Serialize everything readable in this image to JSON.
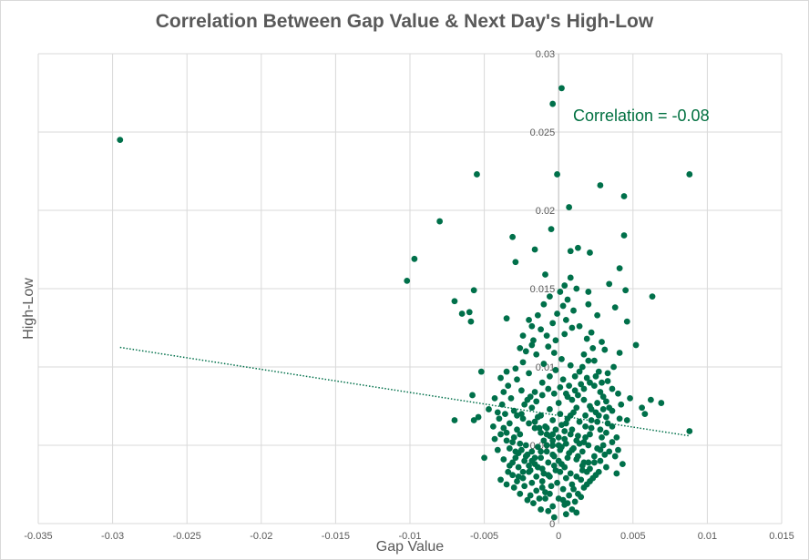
{
  "chart_data": {
    "type": "scatter",
    "title": "Correlation Between Gap Value & Next Day's High-Low",
    "xlabel": "Gap Value",
    "ylabel": "High-Low",
    "xlim": [
      -0.035,
      0.015
    ],
    "ylim": [
      0,
      0.03
    ],
    "x_ticks": [
      "-0.035",
      "-0.03",
      "-0.025",
      "-0.02",
      "-0.015",
      "-0.01",
      "-0.005",
      "0",
      "0.005",
      "0.01",
      "0.015"
    ],
    "x_tick_values": [
      -0.035,
      -0.03,
      -0.025,
      -0.02,
      -0.015,
      -0.01,
      -0.005,
      0,
      0.005,
      0.01,
      0.015
    ],
    "y_ticks": [
      "0",
      "0.005",
      "0.01",
      "0.015",
      "0.02",
      "0.025",
      "0.03"
    ],
    "y_tick_values": [
      0,
      0.005,
      0.01,
      0.015,
      0.02,
      0.025,
      0.03
    ],
    "grid": true,
    "annotation": "Correlation = -0.08",
    "marker_color": "#00704a",
    "trendline": {
      "style": "dotted",
      "x": [
        -0.0295,
        0.0088
      ],
      "y": [
        0.01125,
        0.0056
      ]
    },
    "points": [
      [
        -0.0295,
        0.0245
      ],
      [
        -0.0102,
        0.0155
      ],
      [
        -0.0097,
        0.0169
      ],
      [
        -0.008,
        0.0193
      ],
      [
        -0.0055,
        0.0223
      ],
      [
        -0.0057,
        0.0149
      ],
      [
        -0.007,
        0.0142
      ],
      [
        -0.0065,
        0.0134
      ],
      [
        -0.006,
        0.0135
      ],
      [
        -0.0059,
        0.0129
      ],
      [
        -0.0052,
        0.0097
      ],
      [
        -0.0058,
        0.0082
      ],
      [
        -0.007,
        0.0066
      ],
      [
        -0.0057,
        0.0066
      ],
      [
        -0.0054,
        0.0068
      ],
      [
        -0.005,
        0.0042
      ],
      [
        -0.0035,
        0.0097
      ],
      [
        -0.0026,
        0.0112
      ],
      [
        -0.0018,
        0.0114
      ],
      [
        -0.0018,
        0.0126
      ],
      [
        -0.0035,
        0.0131
      ],
      [
        -0.0029,
        0.0167
      ],
      [
        -0.0031,
        0.0183
      ],
      [
        -0.0016,
        0.0175
      ],
      [
        -0.0009,
        0.0159
      ],
      [
        -0.0005,
        0.0188
      ],
      [
        -0.0004,
        0.0268
      ],
      [
        0.0002,
        0.0278
      ],
      [
        -0.0001,
        0.0223
      ],
      [
        0.0007,
        0.0202
      ],
      [
        0.0028,
        0.0216
      ],
      [
        0.0044,
        0.0209
      ],
      [
        0.0088,
        0.0223
      ],
      [
        0.0044,
        0.0184
      ],
      [
        0.0008,
        0.0174
      ],
      [
        0.0013,
        0.0176
      ],
      [
        0.0021,
        0.0173
      ],
      [
        0.0041,
        0.0163
      ],
      [
        0.0045,
        0.0149
      ],
      [
        0.0063,
        0.0145
      ],
      [
        0.0034,
        0.0153
      ],
      [
        0.0046,
        0.0129
      ],
      [
        0.0052,
        0.0114
      ],
      [
        0.0041,
        0.0109
      ],
      [
        0.0062,
        0.0079
      ],
      [
        0.0048,
        0.008
      ],
      [
        0.0042,
        0.0076
      ],
      [
        0.0056,
        0.0074
      ],
      [
        0.0069,
        0.0077
      ],
      [
        0.0058,
        0.007
      ],
      [
        0.0088,
        0.0059
      ],
      [
        0.0039,
        0.0032
      ],
      [
        0.0014,
        0.0126
      ],
      [
        0.0026,
        0.0133
      ],
      [
        0.0038,
        0.0138
      ],
      [
        0.0019,
        0.0118
      ],
      [
        0.0031,
        0.0111
      ],
      [
        0.0024,
        0.0104
      ],
      [
        0.0027,
        0.0097
      ],
      [
        0.0033,
        0.0091
      ],
      [
        0.0036,
        0.0086
      ],
      [
        0.003,
        0.0081
      ],
      [
        0.0034,
        0.0074
      ],
      [
        0.0027,
        0.0069
      ],
      [
        0.0033,
        0.0064
      ],
      [
        0.0028,
        0.006
      ],
      [
        0.0029,
        0.0055
      ],
      [
        0.0026,
        0.0048
      ],
      [
        0.0031,
        0.0044
      ],
      [
        0.0024,
        0.0039
      ],
      [
        -0.0015,
        0.0108
      ],
      [
        -0.001,
        0.0102
      ],
      [
        -0.002,
        0.0096
      ],
      [
        -0.0028,
        0.0092
      ],
      [
        -0.0034,
        0.0088
      ],
      [
        -0.0025,
        0.0085
      ],
      [
        -0.0032,
        0.008
      ],
      [
        -0.0038,
        0.0076
      ],
      [
        -0.003,
        0.0072
      ],
      [
        -0.0036,
        0.007
      ],
      [
        -0.004,
        0.0067
      ],
      [
        -0.0033,
        0.0064
      ],
      [
        -0.0028,
        0.006
      ],
      [
        -0.0035,
        0.0058
      ],
      [
        -0.003,
        0.0055
      ],
      [
        -0.0026,
        0.0051
      ],
      [
        -0.0033,
        0.0048
      ],
      [
        -0.0029,
        0.0046
      ],
      [
        -0.0022,
        0.0043
      ],
      [
        -0.0031,
        0.0039
      ],
      [
        -0.0027,
        0.0036
      ],
      [
        -0.002,
        0.0033
      ],
      [
        -0.0024,
        0.0029
      ],
      [
        -0.0018,
        0.0026
      ],
      [
        -0.0011,
        0.0023
      ],
      [
        -0.0006,
        0.0019
      ],
      [
        -0.0009,
        0.0016
      ],
      [
        0.0003,
        0.0015
      ],
      [
        0.0006,
        0.0013
      ],
      [
        0.001,
        0.0022
      ],
      [
        0.0015,
        0.0028
      ],
      [
        0.0019,
        0.0033
      ],
      [
        0.0016,
        0.0037
      ],
      [
        0.0012,
        0.0041
      ],
      [
        0.0007,
        0.0045
      ],
      [
        0.0002,
        0.0049
      ],
      [
        -0.0004,
        0.0053
      ],
      [
        -0.0008,
        0.0057
      ],
      [
        -0.0013,
        0.0061
      ],
      [
        -0.0016,
        0.0065
      ],
      [
        -0.0012,
        0.0069
      ],
      [
        -0.0006,
        0.0073
      ],
      [
        0.0,
        0.0077
      ],
      [
        0.0006,
        0.0081
      ],
      [
        0.0011,
        0.0085
      ],
      [
        0.0015,
        0.0089
      ],
      [
        0.0019,
        0.0093
      ],
      [
        0.0014,
        0.0097
      ],
      [
        0.0008,
        0.0101
      ],
      [
        0.0002,
        0.0105
      ],
      [
        -0.0003,
        0.0109
      ],
      [
        -0.0007,
        0.0113
      ],
      [
        -0.0002,
        0.0117
      ],
      [
        0.0004,
        0.0121
      ],
      [
        0.0009,
        0.0125
      ],
      [
        0.0005,
        0.013
      ],
      [
        -0.0001,
        0.0134
      ],
      [
        0.0003,
        0.0139
      ],
      [
        0.0006,
        0.0143
      ],
      [
        0.0001,
        0.0148
      ],
      [
        0.0004,
        0.0152
      ],
      [
        0.0008,
        0.0157
      ],
      [
        0.001,
        0.0136
      ],
      [
        0.002,
        0.014
      ],
      [
        -0.001,
        0.014
      ],
      [
        -0.0014,
        0.0133
      ],
      [
        -0.002,
        0.013
      ],
      [
        -0.0024,
        0.012
      ],
      [
        0.0022,
        0.0122
      ],
      [
        0.002,
        0.0148
      ],
      [
        0.0012,
        0.015
      ],
      [
        -0.0006,
        0.0145
      ],
      [
        -0.0004,
        0.0128
      ],
      [
        -0.0008,
        0.012
      ],
      [
        0.0017,
        0.0108
      ],
      [
        0.0023,
        0.0112
      ],
      [
        0.0029,
        0.0116
      ],
      [
        -0.0016,
        0.0084
      ],
      [
        -0.0021,
        0.0079
      ],
      [
        -0.0025,
        0.007
      ],
      [
        -0.0018,
        0.0074
      ],
      [
        -0.0014,
        0.0068
      ],
      [
        -0.0009,
        0.0062
      ],
      [
        -0.0004,
        0.0066
      ],
      [
        0.0001,
        0.007
      ],
      [
        0.0005,
        0.0064
      ],
      [
        0.0009,
        0.006
      ],
      [
        0.0013,
        0.0056
      ],
      [
        0.0017,
        0.0052
      ],
      [
        0.0021,
        0.0057
      ],
      [
        0.0018,
        0.0062
      ],
      [
        0.0022,
        0.0066
      ],
      [
        0.0025,
        0.0071
      ],
      [
        0.0021,
        0.0075
      ],
      [
        0.0017,
        0.0079
      ],
      [
        0.0012,
        0.0074
      ],
      [
        0.0008,
        0.0069
      ],
      [
        0.0004,
        0.0059
      ],
      [
        0.0,
        0.0055
      ],
      [
        -0.0004,
        0.005
      ],
      [
        -0.0008,
        0.0046
      ],
      [
        -0.0012,
        0.0042
      ],
      [
        -0.0016,
        0.0038
      ],
      [
        -0.0019,
        0.0034
      ],
      [
        -0.0015,
        0.003
      ],
      [
        -0.0011,
        0.0035
      ],
      [
        -0.0007,
        0.0039
      ],
      [
        -0.0003,
        0.0043
      ],
      [
        0.0001,
        0.0047
      ],
      [
        0.0005,
        0.0051
      ],
      [
        0.0009,
        0.0047
      ],
      [
        0.0013,
        0.0043
      ],
      [
        0.0017,
        0.0039
      ],
      [
        0.0021,
        0.0035
      ],
      [
        0.0025,
        0.0031
      ],
      [
        0.0021,
        0.0027
      ],
      [
        0.0017,
        0.0023
      ],
      [
        0.0013,
        0.0019
      ],
      [
        0.0009,
        0.0025
      ],
      [
        0.0005,
        0.0029
      ],
      [
        0.0001,
        0.0033
      ],
      [
        -0.0003,
        0.0037
      ],
      [
        -0.0007,
        0.0031
      ],
      [
        -0.0011,
        0.0027
      ],
      [
        -0.0015,
        0.0021
      ],
      [
        -0.0019,
        0.0018
      ],
      [
        -0.0023,
        0.0024
      ],
      [
        -0.0027,
        0.003
      ],
      [
        -0.0023,
        0.004
      ],
      [
        -0.0027,
        0.0045
      ],
      [
        -0.0031,
        0.0052
      ],
      [
        -0.0037,
        0.0061
      ],
      [
        -0.0044,
        0.0062
      ],
      [
        -0.0041,
        0.0071
      ],
      [
        -0.0043,
        0.008
      ],
      [
        -0.0047,
        0.0073
      ],
      [
        -0.0037,
        0.0084
      ],
      [
        -0.0039,
        0.0093
      ],
      [
        -0.0029,
        0.0099
      ],
      [
        -0.0024,
        0.0103
      ],
      [
        -0.0022,
        0.011
      ],
      [
        -0.0017,
        0.0117
      ],
      [
        -0.0012,
        0.0124
      ],
      [
        -0.0011,
        0.009
      ],
      [
        -0.0006,
        0.0094
      ],
      [
        -0.0002,
        0.0098
      ],
      [
        0.0003,
        0.0092
      ],
      [
        0.0007,
        0.0088
      ],
      [
        0.0011,
        0.0094
      ],
      [
        0.0016,
        0.01
      ],
      [
        0.002,
        0.0104
      ],
      [
        0.0024,
        0.0088
      ],
      [
        0.0028,
        0.0084
      ],
      [
        0.0032,
        0.0078
      ],
      [
        0.0036,
        0.0072
      ],
      [
        0.0032,
        0.0068
      ],
      [
        0.0036,
        0.0062
      ],
      [
        0.0032,
        0.0058
      ],
      [
        0.0036,
        0.0052
      ],
      [
        0.003,
        0.005
      ],
      [
        0.0034,
        0.0046
      ],
      [
        0.0038,
        0.0043
      ],
      [
        0.0028,
        0.004
      ],
      [
        0.0032,
        0.0036
      ],
      [
        0.0027,
        0.0033
      ],
      [
        0.0023,
        0.0029
      ],
      [
        0.0019,
        0.0025
      ],
      [
        0.0015,
        0.0017
      ],
      [
        0.0011,
        0.0014
      ],
      [
        0.0007,
        0.0018
      ],
      [
        0.0003,
        0.0022
      ],
      [
        -0.0001,
        0.0026
      ],
      [
        -0.0005,
        0.0024
      ],
      [
        -0.0009,
        0.002
      ],
      [
        -0.0013,
        0.0016
      ],
      [
        -0.0017,
        0.0013
      ],
      [
        -0.0021,
        0.0015
      ],
      [
        -0.0026,
        0.0019
      ],
      [
        -0.003,
        0.0023
      ],
      [
        -0.0035,
        0.0025
      ],
      [
        -0.0039,
        0.0028
      ],
      [
        -0.0034,
        0.0033
      ],
      [
        -0.0037,
        0.0041
      ],
      [
        -0.0041,
        0.0047
      ],
      [
        -0.0035,
        0.0053
      ],
      [
        -0.0039,
        0.0057
      ],
      [
        -0.0043,
        0.0054
      ],
      [
        -0.0026,
        0.0057
      ],
      [
        -0.0022,
        0.005
      ],
      [
        -0.0018,
        0.0046
      ],
      [
        -0.0014,
        0.0049
      ],
      [
        -0.001,
        0.0053
      ],
      [
        -0.0006,
        0.0056
      ],
      [
        -0.0002,
        0.006
      ],
      [
        0.0002,
        0.0063
      ],
      [
        0.0006,
        0.0067
      ],
      [
        0.001,
        0.0071
      ],
      [
        0.0014,
        0.0065
      ],
      [
        0.0018,
        0.0069
      ],
      [
        0.0022,
        0.0073
      ],
      [
        0.0026,
        0.0077
      ],
      [
        0.003,
        0.0073
      ],
      [
        0.0026,
        0.0065
      ],
      [
        0.0022,
        0.0061
      ],
      [
        0.0018,
        0.0055
      ],
      [
        0.0014,
        0.0051
      ],
      [
        0.001,
        0.0048
      ],
      [
        0.0006,
        0.0042
      ],
      [
        0.0002,
        0.0038
      ],
      [
        -0.0002,
        0.0034
      ],
      [
        -0.0006,
        0.003
      ],
      [
        -0.001,
        0.0032
      ],
      [
        -0.0014,
        0.0036
      ],
      [
        -0.0018,
        0.004
      ],
      [
        -0.0021,
        0.0044
      ],
      [
        -0.0025,
        0.0047
      ],
      [
        -0.0029,
        0.0042
      ],
      [
        -0.0033,
        0.0037
      ],
      [
        -0.0031,
        0.0031
      ],
      [
        -0.0028,
        0.0027
      ],
      [
        -0.0024,
        0.0033
      ],
      [
        -0.002,
        0.0037
      ],
      [
        -0.0016,
        0.0042
      ],
      [
        -0.0012,
        0.0046
      ],
      [
        -0.0008,
        0.005
      ],
      [
        -0.0004,
        0.0044
      ],
      [
        0.0,
        0.004
      ],
      [
        0.0004,
        0.0036
      ],
      [
        0.0008,
        0.0032
      ],
      [
        0.0012,
        0.003
      ],
      [
        0.0016,
        0.0034
      ],
      [
        0.002,
        0.0039
      ],
      [
        0.0024,
        0.0043
      ],
      [
        0.0028,
        0.0047
      ],
      [
        0.002,
        0.005
      ],
      [
        0.0016,
        0.0046
      ],
      [
        0.0012,
        0.0053
      ],
      [
        0.0008,
        0.0057
      ],
      [
        0.0004,
        0.0054
      ],
      [
        0.0,
        0.005
      ],
      [
        -0.0004,
        0.0057
      ],
      [
        -0.0008,
        0.0061
      ],
      [
        -0.0012,
        0.0058
      ],
      [
        -0.0016,
        0.0061
      ],
      [
        -0.002,
        0.0064
      ],
      [
        -0.0024,
        0.0067
      ],
      [
        -0.0028,
        0.0069
      ],
      [
        -0.0023,
        0.0076
      ],
      [
        -0.0019,
        0.0081
      ],
      [
        -0.0015,
        0.0078
      ],
      [
        -0.0011,
        0.0082
      ],
      [
        -0.0007,
        0.0086
      ],
      [
        -0.0003,
        0.0083
      ],
      [
        0.0001,
        0.0087
      ],
      [
        0.0005,
        0.0083
      ],
      [
        0.0009,
        0.0079
      ],
      [
        0.0013,
        0.0082
      ],
      [
        0.0017,
        0.0086
      ],
      [
        0.0021,
        0.009
      ],
      [
        0.0025,
        0.0094
      ],
      [
        0.0029,
        0.009
      ],
      [
        0.0033,
        0.0096
      ],
      [
        0.0037,
        0.01
      ],
      [
        0.004,
        0.0083
      ],
      [
        0.0041,
        0.0067
      ],
      [
        0.0039,
        0.0055
      ],
      [
        0.0043,
        0.0038
      ],
      [
        0.004,
        0.0047
      ],
      [
        0.0046,
        0.0066
      ],
      [
        -0.0004,
        0.0011
      ],
      [
        0.0004,
        0.0012
      ],
      [
        0.0,
        0.0016
      ],
      [
        -0.0007,
        0.0008
      ],
      [
        0.0009,
        0.0009
      ],
      [
        0.0005,
        0.0006
      ],
      [
        -0.0003,
        0.0004
      ],
      [
        0.0012,
        0.0007
      ],
      [
        -0.0012,
        0.0009
      ]
    ]
  }
}
